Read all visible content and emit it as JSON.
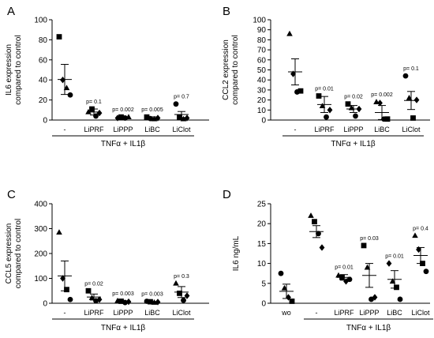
{
  "chart_data": [
    {
      "panel": "A",
      "type": "scatter",
      "ylabel": [
        "IL6 expression",
        "compared to control"
      ],
      "ylim": [
        0,
        100
      ],
      "yticks": [
        0,
        20,
        40,
        60,
        80,
        100
      ],
      "categories": [
        "-",
        "LiPRF",
        "LiPPP",
        "LiBC",
        "LiClot"
      ],
      "group_label": "TNFα + IL1β",
      "group_start": 0,
      "pvalues": [
        "",
        "p= 0.1",
        "p= 0.002",
        "p= 0.005",
        "p= 0.7"
      ],
      "mean": [
        40.5,
        8,
        2.5,
        2,
        5.5
      ],
      "sem": [
        15,
        3,
        0.8,
        1.2,
        3
      ],
      "points": [
        [
          [
            "square",
            83
          ],
          [
            "diamond",
            40
          ],
          [
            "triangle",
            32
          ],
          [
            "circle",
            25
          ]
        ],
        [
          [
            "triangle",
            8
          ],
          [
            "square",
            11
          ],
          [
            "circle",
            4
          ],
          [
            "diamond",
            7
          ]
        ],
        [
          [
            "diamond",
            2
          ],
          [
            "square",
            3
          ],
          [
            "circle",
            2
          ],
          [
            "triangle",
            3
          ]
        ],
        [
          [
            "square",
            3
          ],
          [
            "circle",
            1.5
          ],
          [
            "triangle",
            1
          ],
          [
            "diamond",
            2
          ]
        ],
        [
          [
            "circle",
            16
          ],
          [
            "square",
            3
          ],
          [
            "triangle",
            1
          ],
          [
            "diamond",
            2
          ]
        ]
      ]
    },
    {
      "panel": "B",
      "type": "scatter",
      "ylabel": [
        "CCL2 expression",
        "compared to control"
      ],
      "ylim": [
        0,
        100
      ],
      "yticks": [
        0,
        10,
        20,
        30,
        40,
        50,
        60,
        70,
        80,
        90,
        100
      ],
      "categories": [
        "-",
        "LiPRF",
        "LiPPP",
        "LiBC",
        "LiClot"
      ],
      "group_label": "TNFα + IL1β",
      "group_start": 0,
      "pvalues": [
        "",
        "p= 0.01",
        "p= 0.02",
        "p= 0.002",
        "p= 0.1"
      ],
      "mean": [
        48,
        15.5,
        11,
        7.5,
        19.5
      ],
      "sem": [
        13,
        8,
        3.5,
        7,
        9
      ],
      "points": [
        [
          [
            "triangle",
            86
          ],
          [
            "diamond",
            46
          ],
          [
            "circle",
            28
          ],
          [
            "square",
            29
          ]
        ],
        [
          [
            "square",
            24
          ],
          [
            "triangle",
            14
          ],
          [
            "circle",
            3
          ],
          [
            "diamond",
            10
          ]
        ],
        [
          [
            "square",
            16
          ],
          [
            "triangle",
            12
          ],
          [
            "circle",
            4
          ],
          [
            "diamond",
            11
          ]
        ],
        [
          [
            "triangle",
            18
          ],
          [
            "diamond",
            17
          ],
          [
            "circle",
            1
          ],
          [
            "square",
            1
          ]
        ],
        [
          [
            "circle",
            44
          ],
          [
            "triangle",
            22
          ],
          [
            "square",
            2
          ],
          [
            "diamond",
            20
          ]
        ]
      ]
    },
    {
      "panel": "C",
      "type": "scatter",
      "ylabel": [
        "CCL5 expression",
        "compared to control"
      ],
      "ylim": [
        0,
        400
      ],
      "yticks": [
        0,
        100,
        200,
        300,
        400
      ],
      "categories": [
        "-",
        "LiPRF",
        "LiPPP",
        "LiBC",
        "LiClot"
      ],
      "group_label": "TNFα + IL1β",
      "group_start": 0,
      "pvalues": [
        "",
        "p= 0.02",
        "p= 0.003",
        "p= 0.003",
        "p= 0.3"
      ],
      "mean": [
        110,
        25,
        5,
        5,
        45
      ],
      "sem": [
        60,
        12,
        3,
        2,
        22
      ],
      "points": [
        [
          [
            "triangle",
            285
          ],
          [
            "diamond",
            100
          ],
          [
            "square",
            55
          ],
          [
            "circle",
            15
          ]
        ],
        [
          [
            "square",
            50
          ],
          [
            "triangle",
            22
          ],
          [
            "circle",
            10
          ],
          [
            "diamond",
            15
          ]
        ],
        [
          [
            "triangle",
            10
          ],
          [
            "square",
            8
          ],
          [
            "circle",
            3
          ],
          [
            "diamond",
            6
          ]
        ],
        [
          [
            "circle",
            8
          ],
          [
            "square",
            6
          ],
          [
            "triangle",
            3
          ],
          [
            "diamond",
            5
          ]
        ],
        [
          [
            "triangle",
            80
          ],
          [
            "square",
            40
          ],
          [
            "circle",
            12
          ],
          [
            "diamond",
            30
          ]
        ]
      ]
    },
    {
      "panel": "D",
      "type": "scatter",
      "ylabel": [
        "IL6 ng/mL"
      ],
      "ylim": [
        0,
        25
      ],
      "yticks": [
        0,
        5,
        10,
        15,
        20,
        25
      ],
      "categories": [
        "wo",
        "-",
        "LiPRF",
        "LiPPP",
        "LiBC",
        "LiClot"
      ],
      "group_label": "TNFα + IL1β",
      "group_start": 1,
      "pvalues": [
        "",
        "",
        "p= 0.01",
        "p= 0.03",
        "p= 0.01",
        "p= 0.4"
      ],
      "mean": [
        3,
        18,
        6.5,
        7,
        6,
        12
      ],
      "sem": [
        1.8,
        1.5,
        0.7,
        3,
        2.2,
        2
      ],
      "points": [
        [
          [
            "circle",
            7.5
          ],
          [
            "triangle",
            3.8
          ],
          [
            "diamond",
            1.5
          ],
          [
            "square",
            0.5
          ]
        ],
        [
          [
            "triangle",
            22
          ],
          [
            "square",
            20.5
          ],
          [
            "circle",
            17.5
          ],
          [
            "diamond",
            14
          ]
        ],
        [
          [
            "triangle",
            7
          ],
          [
            "square",
            6.5
          ],
          [
            "diamond",
            5.5
          ],
          [
            "circle",
            6
          ]
        ],
        [
          [
            "square",
            14.5
          ],
          [
            "triangle",
            9
          ],
          [
            "circle",
            1
          ],
          [
            "diamond",
            1.5
          ]
        ],
        [
          [
            "diamond",
            10
          ],
          [
            "triangle",
            5.5
          ],
          [
            "square",
            4
          ],
          [
            "circle",
            1
          ]
        ],
        [
          [
            "triangle",
            17
          ],
          [
            "diamond",
            13.5
          ],
          [
            "square",
            10
          ],
          [
            "circle",
            8
          ]
        ]
      ]
    }
  ]
}
